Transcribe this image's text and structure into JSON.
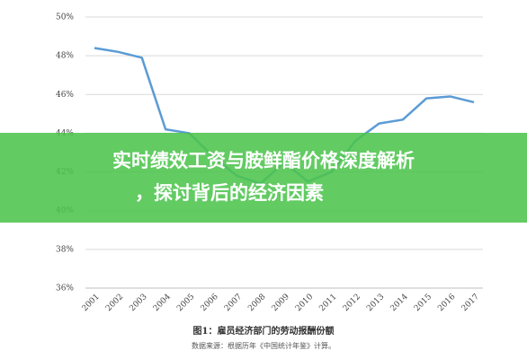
{
  "chart_data": {
    "type": "line",
    "title": [
      "实时绩效工资与胺鲜酯价格深度解析",
      "，探讨背后的经济因素"
    ],
    "caption": "图1：雇员经济部门的劳动报酬份额",
    "source": "数据来源：根据历年《中国统计年鉴》计算。",
    "categories": [
      "2001",
      "2002",
      "2003",
      "2004",
      "2005",
      "2006",
      "2007",
      "2008",
      "2009",
      "2010",
      "2011",
      "2012",
      "2013",
      "2014",
      "2015",
      "2016",
      "2017"
    ],
    "series": [
      {
        "color": "#5b9bd5",
        "values": [
          48.4,
          48.2,
          47.9,
          44.2,
          44.0,
          42.8,
          41.8,
          41.4,
          42.5,
          41.5,
          42.0,
          43.6,
          44.5,
          44.7,
          45.8,
          45.9,
          45.6
        ]
      }
    ],
    "ylim": [
      36,
      50
    ],
    "yticks": [
      {
        "value": 36,
        "label": "36%"
      },
      {
        "value": 38,
        "label": "38%"
      },
      {
        "value": 40,
        "label": "40%"
      },
      {
        "value": 42,
        "label": "42%"
      },
      {
        "value": 44,
        "label": "44%"
      },
      {
        "value": 46,
        "label": "46%"
      },
      {
        "value": 48,
        "label": "48%"
      },
      {
        "value": 50,
        "label": "50%"
      }
    ],
    "grid": true
  }
}
